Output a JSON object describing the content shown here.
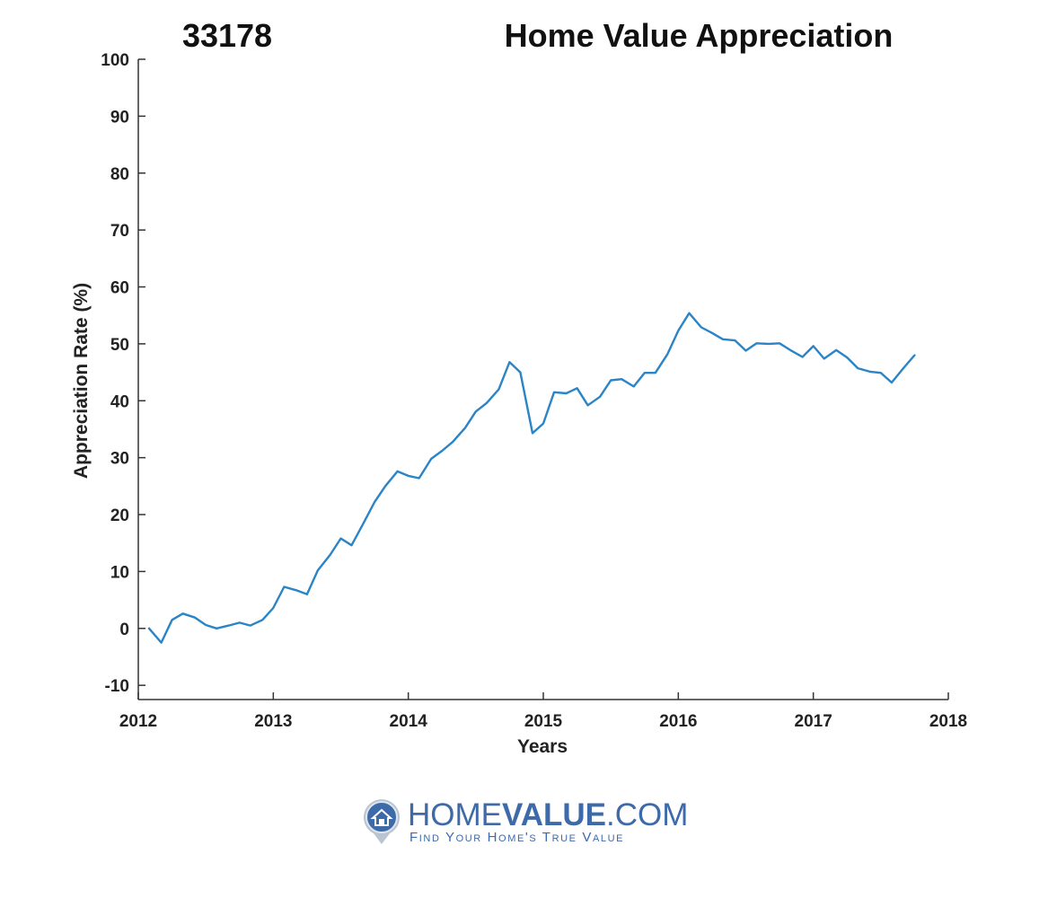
{
  "chart_title_left": "33178",
  "chart_title_right": "Home Value Appreciation",
  "logo": {
    "brand_light_1": "HOME",
    "brand_bold": "VALUE",
    "brand_light_2": ".COM",
    "tagline": "Find Your Home's True Value",
    "icon": "house-pin-icon"
  },
  "colors": {
    "series": "#2a84c6",
    "brand": "#3d6aa8"
  },
  "chart_data": {
    "type": "line",
    "title": "Home Value Appreciation",
    "xlabel": "Years",
    "ylabel": "Appreciation Rate (%)",
    "xlim": [
      2012,
      2018
    ],
    "ylim": [
      -12.5,
      100
    ],
    "xticks": [
      "2012",
      "2013",
      "2014",
      "2015",
      "2016",
      "2017",
      "2018"
    ],
    "yticks": [
      "-10",
      "0",
      "10",
      "20",
      "30",
      "40",
      "50",
      "60",
      "70",
      "80",
      "90",
      "100"
    ],
    "grid": false,
    "series": [
      {
        "x": [
          2012.08,
          2012.17,
          2012.25,
          2012.33,
          2012.42,
          2012.5,
          2012.58,
          2012.67,
          2012.75,
          2012.83,
          2012.92,
          2013.0,
          2013.08,
          2013.17,
          2013.25,
          2013.33,
          2013.42,
          2013.5,
          2013.58,
          2013.67,
          2013.75,
          2013.83,
          2013.92,
          2014.0,
          2014.08,
          2014.17,
          2014.25,
          2014.33,
          2014.42,
          2014.5,
          2014.58,
          2014.67,
          2014.75,
          2014.83,
          2014.92,
          2015.0,
          2015.08,
          2015.17,
          2015.25,
          2015.33,
          2015.42,
          2015.5,
          2015.58,
          2015.67,
          2015.75,
          2015.83,
          2015.92,
          2016.0,
          2016.08,
          2016.17,
          2016.25,
          2016.33,
          2016.42,
          2016.5,
          2016.58,
          2016.67,
          2016.75,
          2016.83,
          2016.92,
          2017.0,
          2017.08,
          2017.17,
          2017.25,
          2017.33,
          2017.42,
          2017.5,
          2017.58,
          2017.67,
          2017.75
        ],
        "values": [
          0,
          -2.5,
          1.5,
          2.6,
          1.9,
          0.6,
          0,
          0.5,
          1,
          0.5,
          1.5,
          3.6,
          7.3,
          6.7,
          6,
          10.2,
          12.9,
          15.8,
          14.6,
          18.6,
          22.2,
          25,
          27.6,
          26.8,
          26.4,
          29.8,
          31.2,
          32.8,
          35.2,
          38.1,
          39.6,
          42,
          46.8,
          45,
          34.3,
          36,
          41.5,
          41.3,
          42.2,
          39.2,
          40.7,
          43.6,
          43.8,
          42.5,
          44.9,
          44.9,
          48.2,
          52.3,
          55.4,
          52.9,
          51.9,
          50.8,
          50.6,
          48.8,
          50.1,
          50,
          50.1,
          48.9,
          47.7,
          49.6,
          47.4,
          48.9,
          47.6,
          45.7,
          45.1,
          44.9,
          43.2,
          45.8,
          48
        ]
      }
    ]
  }
}
